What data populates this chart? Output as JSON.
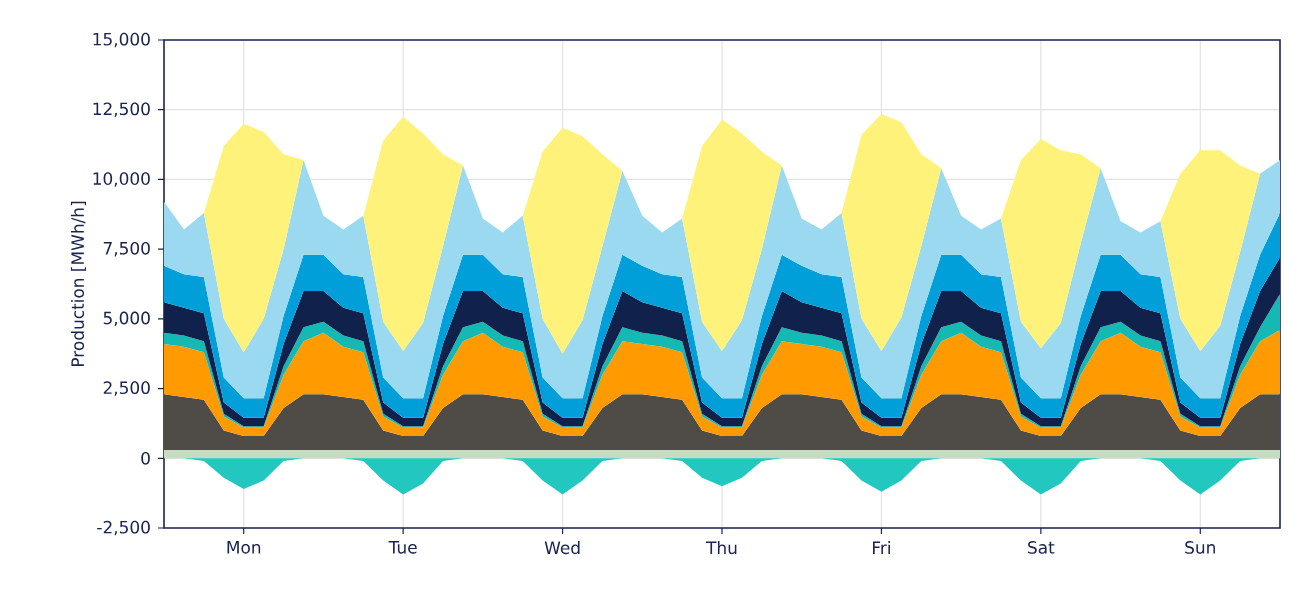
{
  "chart_data": [
    {
      "type": "area",
      "stacked": true,
      "ylabel": "Production [MWh/h]",
      "categories": [
        null,
        null,
        null,
        null,
        "Mon",
        null,
        null,
        null,
        null,
        null,
        null,
        null,
        "Tue",
        null,
        null,
        null,
        null,
        null,
        null,
        null,
        "Wed",
        null,
        null,
        null,
        null,
        null,
        null,
        null,
        "Thu",
        null,
        null,
        null,
        null,
        null,
        null,
        null,
        "Fri",
        null,
        null,
        null,
        null,
        null,
        null,
        null,
        "Sat",
        null,
        null,
        null,
        null,
        null,
        null,
        null,
        "Sun",
        null,
        null,
        null,
        null
      ],
      "ylim": [
        -2500,
        15000
      ],
      "yticks": [
        {
          "value": -2500,
          "label": "-2,500"
        },
        0,
        {
          "value": 2500,
          "label": "2,500"
        },
        {
          "value": 5000,
          "label": "5,000"
        },
        {
          "value": 7500,
          "label": "7,500"
        },
        {
          "value": 10000,
          "label": "10,000"
        },
        {
          "value": 12500,
          "label": "12,500"
        },
        {
          "value": 15000,
          "label": "15,000"
        }
      ],
      "grid": true,
      "series": [
        {
          "color": "#c5dcc0",
          "values": [
            300,
            300,
            300,
            300,
            300,
            300,
            300,
            300,
            300,
            300,
            300,
            300,
            300,
            300,
            300,
            300,
            300,
            300,
            300,
            300,
            300,
            300,
            300,
            300,
            300,
            300,
            300,
            300,
            300,
            300,
            300,
            300,
            300,
            300,
            300,
            300,
            300,
            300,
            300,
            300,
            300,
            300,
            300,
            300,
            300,
            300,
            300,
            300,
            300,
            300,
            300,
            300,
            300,
            300,
            300,
            300,
            300
          ]
        },
        {
          "color": "#4f4c48",
          "values": [
            2000,
            1900,
            1800,
            700,
            500,
            500,
            1500,
            2000,
            2000,
            1900,
            1800,
            700,
            500,
            500,
            1500,
            2000,
            2000,
            1900,
            1800,
            700,
            500,
            500,
            1500,
            2000,
            2000,
            1900,
            1800,
            700,
            500,
            500,
            1500,
            2000,
            2000,
            1900,
            1800,
            700,
            500,
            500,
            1500,
            2000,
            2000,
            1900,
            1800,
            700,
            500,
            500,
            1500,
            2000,
            2000,
            1900,
            1800,
            700,
            500,
            500,
            1500,
            2000,
            2000
          ]
        },
        {
          "color": "#ff9a00",
          "values": [
            1800,
            1800,
            1700,
            500,
            300,
            300,
            1200,
            1900,
            2200,
            1800,
            1700,
            500,
            300,
            300,
            1200,
            1900,
            2200,
            1800,
            1700,
            500,
            300,
            300,
            1200,
            1900,
            1800,
            1800,
            1700,
            500,
            300,
            300,
            1200,
            1900,
            1800,
            1800,
            1700,
            500,
            300,
            300,
            1200,
            1900,
            2200,
            1800,
            1700,
            500,
            300,
            300,
            1200,
            1900,
            2200,
            1800,
            1700,
            500,
            300,
            300,
            1200,
            1900,
            2300
          ]
        },
        {
          "color": "#14b9b3",
          "values": [
            400,
            400,
            400,
            100,
            50,
            50,
            300,
            500,
            400,
            400,
            400,
            100,
            50,
            50,
            300,
            500,
            400,
            400,
            400,
            100,
            50,
            50,
            300,
            500,
            400,
            400,
            400,
            100,
            50,
            50,
            300,
            500,
            400,
            400,
            400,
            100,
            50,
            50,
            300,
            500,
            400,
            400,
            400,
            100,
            50,
            50,
            300,
            500,
            400,
            400,
            400,
            100,
            50,
            50,
            300,
            500,
            1300
          ]
        },
        {
          "color": "#10214b",
          "values": [
            1100,
            1000,
            1000,
            400,
            300,
            300,
            800,
            1300,
            1100,
            1000,
            1000,
            400,
            300,
            300,
            800,
            1300,
            1100,
            1000,
            1000,
            400,
            300,
            300,
            800,
            1300,
            1100,
            1000,
            1000,
            400,
            300,
            300,
            800,
            1300,
            1100,
            1000,
            1000,
            400,
            300,
            300,
            800,
            1300,
            1100,
            1000,
            1000,
            400,
            300,
            300,
            800,
            1300,
            1100,
            1000,
            1000,
            400,
            300,
            300,
            800,
            1300,
            1300
          ]
        },
        {
          "color": "#009fd9",
          "values": [
            1300,
            1200,
            1300,
            900,
            700,
            700,
            1000,
            1300,
            1300,
            1200,
            1300,
            900,
            700,
            700,
            1000,
            1300,
            1300,
            1200,
            1300,
            900,
            700,
            700,
            1000,
            1300,
            1300,
            1200,
            1300,
            900,
            700,
            700,
            1000,
            1300,
            1300,
            1200,
            1300,
            900,
            700,
            700,
            1000,
            1300,
            1300,
            1200,
            1300,
            900,
            700,
            700,
            1000,
            1300,
            1300,
            1200,
            1300,
            900,
            700,
            700,
            1000,
            1300,
            1600
          ]
        },
        {
          "color": "#9bd9f0",
          "values": [
            2300,
            1600,
            2300,
            2100,
            1650,
            2850,
            2400,
            3400,
            1400,
            1600,
            2200,
            2000,
            1700,
            2700,
            2500,
            3200,
            1300,
            1500,
            2200,
            2100,
            1600,
            2800,
            2500,
            3000,
            1800,
            1500,
            2100,
            2000,
            1700,
            2800,
            2400,
            3200,
            1700,
            1600,
            2300,
            2100,
            1700,
            2900,
            2500,
            3100,
            1400,
            1600,
            2100,
            2000,
            1800,
            2700,
            2600,
            3100,
            1200,
            1500,
            2000,
            2100,
            1700,
            2600,
            2300,
            2900,
            1900
          ]
        },
        {
          "color": "#fff27a",
          "values": [
            0,
            0,
            0,
            6200,
            8200,
            6700,
            3400,
            0,
            0,
            0,
            0,
            6500,
            8400,
            6800,
            3300,
            0,
            0,
            0,
            0,
            6000,
            8100,
            6600,
            3300,
            0,
            0,
            0,
            0,
            6300,
            8300,
            6700,
            3500,
            0,
            0,
            0,
            0,
            6600,
            8500,
            7000,
            3300,
            0,
            0,
            0,
            0,
            5800,
            7500,
            6200,
            3200,
            0,
            0,
            0,
            0,
            5200,
            7200,
            6300,
            3100,
            0,
            0
          ]
        }
      ]
    },
    {
      "type": "area",
      "tick_labels": false,
      "categories": [
        null,
        null,
        null,
        null,
        null,
        null,
        null,
        null,
        null,
        null,
        null,
        null,
        null,
        null,
        null,
        null,
        null,
        null,
        null,
        null,
        null,
        null,
        null,
        null,
        null,
        null,
        null,
        null,
        null,
        null,
        null,
        null,
        null,
        null,
        null,
        null,
        null,
        null,
        null,
        null,
        null,
        null,
        null,
        null,
        null,
        null,
        null,
        null,
        null,
        null,
        null,
        null,
        null,
        null,
        null,
        null,
        null
      ],
      "ylim": [
        -2500,
        15000
      ],
      "series": [
        {
          "color": "#22c8bf",
          "values": [
            0,
            0,
            -100,
            -700,
            -1100,
            -800,
            -100,
            0,
            0,
            0,
            -100,
            -800,
            -1300,
            -900,
            -100,
            0,
            0,
            0,
            -100,
            -800,
            -1300,
            -800,
            -100,
            0,
            0,
            0,
            -100,
            -700,
            -1000,
            -700,
            -100,
            0,
            0,
            0,
            -100,
            -800,
            -1200,
            -800,
            -100,
            0,
            0,
            0,
            -100,
            -800,
            -1300,
            -900,
            -100,
            0,
            0,
            0,
            -100,
            -800,
            -1300,
            -800,
            -100,
            0,
            0
          ]
        }
      ]
    }
  ]
}
